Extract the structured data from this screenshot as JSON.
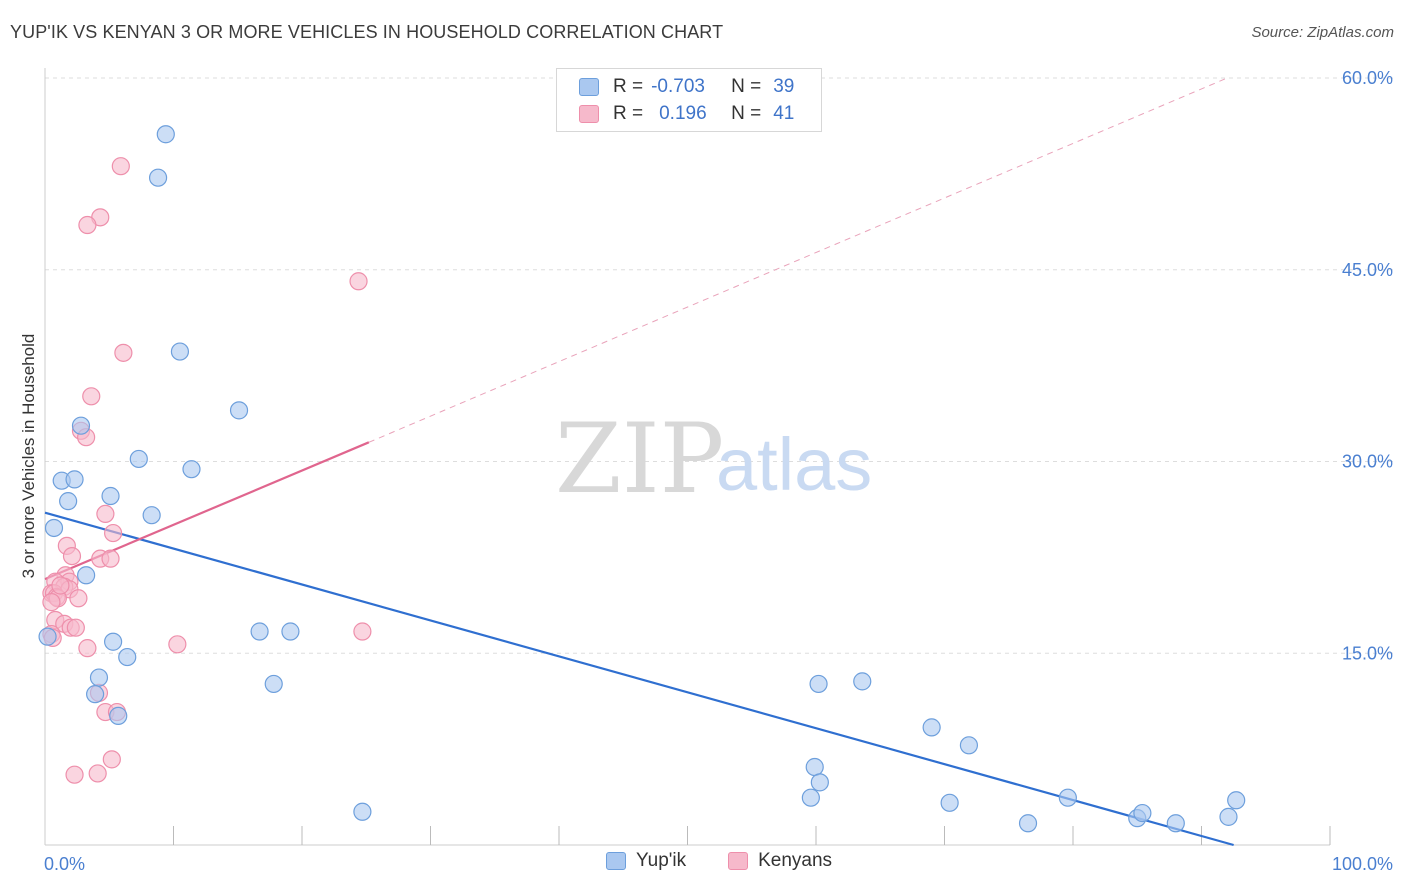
{
  "title": "YUP'IK VS KENYAN 3 OR MORE VEHICLES IN HOUSEHOLD CORRELATION CHART",
  "source": "Source: ZipAtlas.com",
  "watermark": {
    "zip": "ZIP",
    "atlas": "atlas"
  },
  "colors": {
    "yupik_fill": "#aac8f0",
    "yupik_stroke": "#6d9fdc",
    "yupik_line": "#2f6fd0",
    "kenyan_fill": "#f6b9cb",
    "kenyan_stroke": "#ee8fab",
    "kenyan_line": "#e0658e",
    "grid": "#dddddd",
    "axis_text": "#4a7fd0"
  },
  "legend": {
    "rows": [
      {
        "r_label": "R =",
        "r_value": "-0.703",
        "n_label": "N =",
        "n_value": "39"
      },
      {
        "r_label": "R =",
        "r_value": "0.196",
        "n_label": "N =",
        "n_value": "41"
      }
    ]
  },
  "bottom_legend": {
    "series1": "Yup'ik",
    "series2": "Kenyans"
  },
  "chart_data": {
    "type": "scatter",
    "title": "YUP'IK VS KENYAN 3 OR MORE VEHICLES IN HOUSEHOLD CORRELATION CHART",
    "xlabel": "",
    "ylabel": "3 or more Vehicles in Household",
    "xlim": [
      0,
      100
    ],
    "ylim": [
      0,
      60
    ],
    "x_tick_labels": [
      "0.0%",
      "100.0%"
    ],
    "y_ticks": [
      15,
      30,
      45,
      60
    ],
    "y_tick_labels": [
      "15.0%",
      "30.0%",
      "45.0%",
      "60.0%"
    ],
    "series": [
      {
        "name": "Yup'ik",
        "R": -0.703,
        "N": 39,
        "trend": {
          "x0": 0,
          "y0": 26.0,
          "x1": 92.5,
          "y1": 0.0
        },
        "points": [
          [
            9.4,
            55.6
          ],
          [
            8.8,
            52.2
          ],
          [
            10.5,
            38.6
          ],
          [
            15.1,
            34.0
          ],
          [
            2.8,
            32.8
          ],
          [
            7.3,
            30.2
          ],
          [
            11.4,
            29.4
          ],
          [
            1.3,
            28.5
          ],
          [
            2.3,
            28.6
          ],
          [
            1.8,
            26.9
          ],
          [
            5.1,
            27.3
          ],
          [
            8.3,
            25.8
          ],
          [
            0.7,
            24.8
          ],
          [
            3.2,
            21.1
          ],
          [
            0.2,
            16.3
          ],
          [
            5.3,
            15.9
          ],
          [
            6.4,
            14.7
          ],
          [
            16.7,
            16.7
          ],
          [
            19.1,
            16.7
          ],
          [
            4.2,
            13.1
          ],
          [
            3.9,
            11.8
          ],
          [
            17.8,
            12.6
          ],
          [
            5.7,
            10.1
          ],
          [
            60.2,
            12.6
          ],
          [
            63.6,
            12.8
          ],
          [
            69.0,
            9.2
          ],
          [
            71.9,
            7.8
          ],
          [
            59.9,
            6.1
          ],
          [
            60.3,
            4.9
          ],
          [
            59.6,
            3.7
          ],
          [
            24.7,
            2.6
          ],
          [
            70.4,
            3.3
          ],
          [
            76.5,
            1.7
          ],
          [
            79.6,
            3.7
          ],
          [
            85.0,
            2.1
          ],
          [
            85.4,
            2.5
          ],
          [
            88.0,
            1.7
          ],
          [
            92.1,
            2.2
          ],
          [
            92.7,
            3.5
          ]
        ]
      },
      {
        "name": "Kenyans",
        "R": 0.196,
        "N": 41,
        "trend": {
          "x0": 0,
          "y0": 20.8,
          "x1": 25.2,
          "y1": 31.5,
          "dash_to_x": 92,
          "dash_to_y": 60.0
        },
        "points": [
          [
            5.9,
            53.1
          ],
          [
            4.3,
            49.1
          ],
          [
            3.3,
            48.5
          ],
          [
            24.4,
            44.1
          ],
          [
            6.1,
            38.5
          ],
          [
            3.6,
            35.1
          ],
          [
            2.8,
            32.4
          ],
          [
            3.2,
            31.9
          ],
          [
            4.7,
            25.9
          ],
          [
            5.3,
            24.4
          ],
          [
            1.7,
            23.4
          ],
          [
            2.1,
            22.6
          ],
          [
            4.3,
            22.4
          ],
          [
            5.1,
            22.4
          ],
          [
            1.6,
            21.1
          ],
          [
            0.8,
            20.6
          ],
          [
            1.9,
            20.6
          ],
          [
            1.5,
            20.2
          ],
          [
            1.9,
            20.0
          ],
          [
            0.5,
            19.7
          ],
          [
            0.7,
            19.7
          ],
          [
            0.9,
            19.4
          ],
          [
            1.0,
            19.3
          ],
          [
            2.6,
            19.3
          ],
          [
            0.8,
            17.6
          ],
          [
            1.5,
            17.3
          ],
          [
            2.0,
            17.0
          ],
          [
            2.4,
            17.0
          ],
          [
            0.5,
            16.5
          ],
          [
            10.3,
            15.7
          ],
          [
            3.3,
            15.4
          ],
          [
            24.7,
            16.7
          ],
          [
            4.2,
            11.9
          ],
          [
            4.7,
            10.4
          ],
          [
            5.6,
            10.4
          ],
          [
            2.3,
            5.5
          ],
          [
            4.1,
            5.6
          ],
          [
            5.2,
            6.7
          ],
          [
            0.6,
            16.2
          ],
          [
            0.5,
            19.0
          ],
          [
            1.2,
            20.3
          ]
        ]
      }
    ]
  }
}
